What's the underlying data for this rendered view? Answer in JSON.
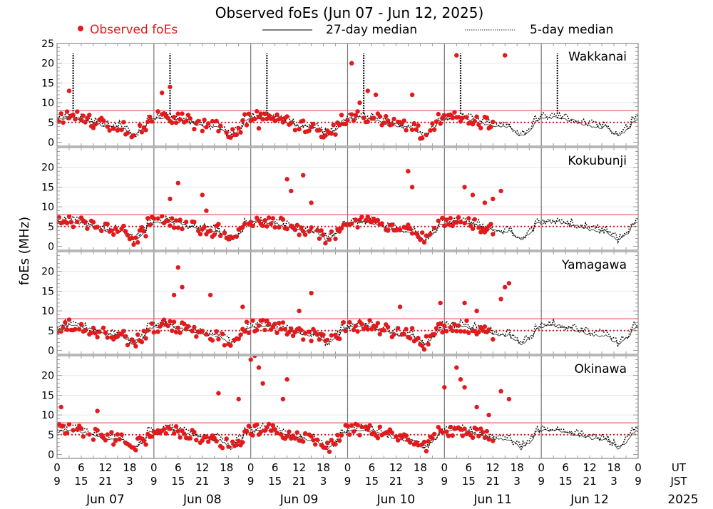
{
  "chart_data": {
    "type": "scatter",
    "title": "Observed foEs (Jun 07 - Jun 12, 2025)",
    "ylabel": "foEs (MHz)",
    "ylim": [
      -1,
      25
    ],
    "yticks": [
      0,
      5,
      10,
      15,
      20,
      25
    ],
    "yticks_inner": [
      0,
      5,
      10,
      15,
      20
    ],
    "grid": true,
    "legend": {
      "placement": "top",
      "entries": [
        {
          "label": "Observed foEs",
          "style": "red-dot",
          "color": "#e31a1c"
        },
        {
          "label": "27-day median",
          "style": "solid-line",
          "color": "#000000"
        },
        {
          "label": "5-day median",
          "style": "dotted-line",
          "color": "#000000"
        }
      ]
    },
    "reference_lines": [
      {
        "value": 8,
        "style": "solid",
        "color": "#e06666"
      },
      {
        "value": 5,
        "style": "dotted",
        "color": "#d62020"
      }
    ],
    "x_axis": {
      "ut_label": "UT",
      "jst_label": "JST",
      "year_label": "2025",
      "ut_ticks": [
        "0",
        "6",
        "12",
        "18",
        "0",
        "6",
        "12",
        "18",
        "0",
        "6",
        "12",
        "18",
        "0",
        "6",
        "12",
        "18",
        "0",
        "6",
        "12",
        "18",
        "0",
        "6",
        "12",
        "18",
        "0"
      ],
      "jst_ticks": [
        "9",
        "15",
        "21",
        "3",
        "9",
        "15",
        "21",
        "3",
        "9",
        "15",
        "21",
        "3",
        "9",
        "15",
        "21",
        "3",
        "9",
        "15",
        "21",
        "3",
        "9",
        "15",
        "21",
        "3",
        "9"
      ],
      "days": [
        "Jun 07",
        "Jun 08",
        "Jun 09",
        "Jun 10",
        "Jun 11",
        "Jun 12"
      ],
      "hours_range": [
        0,
        144
      ]
    },
    "observed_until_hour": 108,
    "panels": [
      {
        "station": "Wakkanai",
        "seed": 11,
        "peaks": [
          [
            3,
            13
          ],
          [
            26,
            12.5
          ],
          [
            28,
            14
          ],
          [
            50,
            3.5
          ],
          [
            73,
            20
          ],
          [
            77,
            13
          ],
          [
            79,
            12
          ],
          [
            88,
            12
          ],
          [
            99,
            22
          ],
          [
            111,
            22
          ],
          [
            75,
            10
          ]
        ],
        "spike5": [
          4,
          28,
          52,
          76,
          100,
          124
        ]
      },
      {
        "station": "Kokubunji",
        "seed": 23,
        "peaks": [
          [
            30,
            16
          ],
          [
            28,
            12
          ],
          [
            36,
            13
          ],
          [
            37,
            9
          ],
          [
            57,
            17
          ],
          [
            58,
            14
          ],
          [
            61,
            18
          ],
          [
            63,
            11
          ],
          [
            87,
            19
          ],
          [
            88,
            15
          ],
          [
            101,
            15
          ],
          [
            103,
            13
          ],
          [
            106,
            11
          ],
          [
            110,
            14
          ],
          [
            108,
            12
          ]
        ],
        "spike5": []
      },
      {
        "station": "Yamagawa",
        "seed": 37,
        "peaks": [
          [
            30,
            21
          ],
          [
            31,
            16
          ],
          [
            29,
            14
          ],
          [
            38,
            14
          ],
          [
            46,
            11
          ],
          [
            60,
            10
          ],
          [
            63,
            14.5
          ],
          [
            85,
            11
          ],
          [
            95,
            12
          ],
          [
            101,
            12
          ],
          [
            104,
            10
          ],
          [
            111,
            16
          ],
          [
            112,
            17
          ],
          [
            110,
            13
          ]
        ],
        "spike5": []
      },
      {
        "station": "Okinawa",
        "seed": 53,
        "peaks": [
          [
            1,
            12
          ],
          [
            10,
            11
          ],
          [
            40,
            15.5
          ],
          [
            45,
            14
          ],
          [
            48,
            24
          ],
          [
            49,
            25
          ],
          [
            50,
            22
          ],
          [
            51,
            18
          ],
          [
            57,
            19
          ],
          [
            56,
            14
          ],
          [
            99,
            22
          ],
          [
            100,
            19
          ],
          [
            101,
            17
          ],
          [
            104,
            12
          ],
          [
            110,
            16
          ],
          [
            112,
            14
          ],
          [
            107,
            10
          ],
          [
            96,
            17
          ]
        ],
        "spike5": []
      }
    ]
  }
}
